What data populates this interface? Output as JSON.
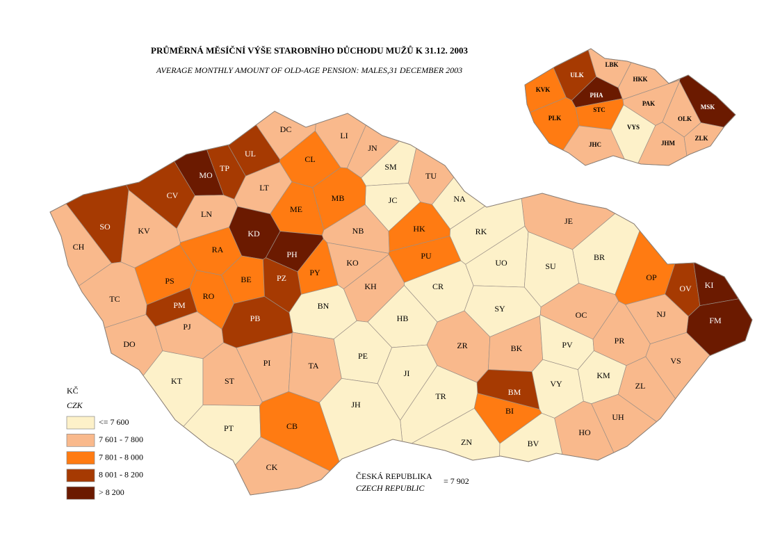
{
  "title": "PRŮMĚRNÁ MĚSÍČNÍ VÝŠE STAROBNÍHO DŮCHODU MUŽŮ K 31.12. 2003",
  "subtitle": "AVERAGE MONTHLY AMOUNT OF OLD-AGE PENSION: MALES,31 DECEMBER 2003",
  "legend": {
    "title": "KČ",
    "subtitle": "CZK",
    "items": [
      {
        "label": "<= 7 600",
        "color": "#fdf1c9"
      },
      {
        "label": "7 601 - 7 800",
        "color": "#f9b98c"
      },
      {
        "label": "7 801 - 8 000",
        "color": "#ff7b12"
      },
      {
        "label": "8 001 - 8 200",
        "color": "#a63a02"
      },
      {
        "label": "> 8 200",
        "color": "#6b1a00"
      }
    ]
  },
  "national": {
    "label": "ČESKÁ REPUBLIKA",
    "label_en": "CZECH REPUBLIC",
    "value": "= 7 902"
  },
  "districts": [
    {
      "code": "DC",
      "color": "#f9b98c"
    },
    {
      "code": "LI",
      "color": "#f9b98c"
    },
    {
      "code": "JN",
      "color": "#f9b98c"
    },
    {
      "code": "CL",
      "color": "#ff7b12"
    },
    {
      "code": "UL",
      "color": "#a63a02"
    },
    {
      "code": "TP",
      "color": "#a63a02"
    },
    {
      "code": "MO",
      "color": "#6b1a00"
    },
    {
      "code": "SM",
      "color": "#fdf1c9"
    },
    {
      "code": "TU",
      "color": "#f9b98c"
    },
    {
      "code": "LT",
      "color": "#f9b98c"
    },
    {
      "code": "CV",
      "color": "#a63a02"
    },
    {
      "code": "JC",
      "color": "#fdf1c9"
    },
    {
      "code": "NA",
      "color": "#fdf1c9"
    },
    {
      "code": "MB",
      "color": "#ff7b12"
    },
    {
      "code": "ME",
      "color": "#ff7b12"
    },
    {
      "code": "LN",
      "color": "#f9b98c"
    },
    {
      "code": "SO",
      "color": "#a63a02"
    },
    {
      "code": "KV",
      "color": "#f9b98c"
    },
    {
      "code": "JE",
      "color": "#f9b98c"
    },
    {
      "code": "KD",
      "color": "#6b1a00"
    },
    {
      "code": "NB",
      "color": "#f9b98c"
    },
    {
      "code": "HK",
      "color": "#ff7b12"
    },
    {
      "code": "RK",
      "color": "#fdf1c9"
    },
    {
      "code": "CH",
      "color": "#f9b98c"
    },
    {
      "code": "RA",
      "color": "#ff7b12"
    },
    {
      "code": "PH",
      "color": "#6b1a00"
    },
    {
      "code": "BR",
      "color": "#fdf1c9"
    },
    {
      "code": "KO",
      "color": "#f9b98c"
    },
    {
      "code": "UO",
      "color": "#fdf1c9"
    },
    {
      "code": "SU",
      "color": "#fdf1c9"
    },
    {
      "code": "PU",
      "color": "#ff7b12"
    },
    {
      "code": "PY",
      "color": "#ff7b12"
    },
    {
      "code": "PS",
      "color": "#ff7b12"
    },
    {
      "code": "BE",
      "color": "#ff7b12"
    },
    {
      "code": "PZ",
      "color": "#a63a02"
    },
    {
      "code": "OP",
      "color": "#ff7b12"
    },
    {
      "code": "OV",
      "color": "#a63a02"
    },
    {
      "code": "KI",
      "color": "#6b1a00"
    },
    {
      "code": "FM",
      "color": "#6b1a00"
    },
    {
      "code": "KH",
      "color": "#f9b98c"
    },
    {
      "code": "CR",
      "color": "#fdf1c9"
    },
    {
      "code": "TC",
      "color": "#f9b98c"
    },
    {
      "code": "RO",
      "color": "#ff7b12"
    },
    {
      "code": "PM",
      "color": "#a63a02"
    },
    {
      "code": "BN",
      "color": "#fdf1c9"
    },
    {
      "code": "SY",
      "color": "#fdf1c9"
    },
    {
      "code": "HB",
      "color": "#fdf1c9"
    },
    {
      "code": "OC",
      "color": "#f9b98c"
    },
    {
      "code": "NJ",
      "color": "#f9b98c"
    },
    {
      "code": "PB",
      "color": "#a63a02"
    },
    {
      "code": "PJ",
      "color": "#f9b98c"
    },
    {
      "code": "DO",
      "color": "#f9b98c"
    },
    {
      "code": "ZR",
      "color": "#f9b98c"
    },
    {
      "code": "BK",
      "color": "#f9b98c"
    },
    {
      "code": "PV",
      "color": "#fdf1c9"
    },
    {
      "code": "PR",
      "color": "#f9b98c"
    },
    {
      "code": "PE",
      "color": "#fdf1c9"
    },
    {
      "code": "PI",
      "color": "#f9b98c"
    },
    {
      "code": "TA",
      "color": "#f9b98c"
    },
    {
      "code": "VS",
      "color": "#f9b98c"
    },
    {
      "code": "JI",
      "color": "#fdf1c9"
    },
    {
      "code": "KM",
      "color": "#fdf1c9"
    },
    {
      "code": "KT",
      "color": "#fdf1c9"
    },
    {
      "code": "ST",
      "color": "#f9b98c"
    },
    {
      "code": "VY",
      "color": "#fdf1c9"
    },
    {
      "code": "ZL",
      "color": "#f9b98c"
    },
    {
      "code": "BM",
      "color": "#a63a02"
    },
    {
      "code": "TR",
      "color": "#fdf1c9"
    },
    {
      "code": "JH",
      "color": "#fdf1c9"
    },
    {
      "code": "BI",
      "color": "#ff7b12"
    },
    {
      "code": "UH",
      "color": "#f9b98c"
    },
    {
      "code": "PT",
      "color": "#fdf1c9"
    },
    {
      "code": "CB",
      "color": "#ff7b12"
    },
    {
      "code": "HO",
      "color": "#f9b98c"
    },
    {
      "code": "ZN",
      "color": "#fdf1c9"
    },
    {
      "code": "BV",
      "color": "#fdf1c9"
    },
    {
      "code": "CK",
      "color": "#f9b98c"
    }
  ],
  "regions": [
    {
      "code": "LBK",
      "color": "#f9b98c"
    },
    {
      "code": "ULK",
      "color": "#a63a02"
    },
    {
      "code": "HKK",
      "color": "#f9b98c"
    },
    {
      "code": "KVK",
      "color": "#ff7b12"
    },
    {
      "code": "PHA",
      "color": "#6b1a00"
    },
    {
      "code": "STC",
      "color": "#ff7b12"
    },
    {
      "code": "PAK",
      "color": "#f9b98c"
    },
    {
      "code": "MSK",
      "color": "#6b1a00"
    },
    {
      "code": "PLK",
      "color": "#ff7b12"
    },
    {
      "code": "VYS",
      "color": "#fdf1c9"
    },
    {
      "code": "OLK",
      "color": "#f9b98c"
    },
    {
      "code": "JHC",
      "color": "#f9b98c"
    },
    {
      "code": "JHM",
      "color": "#f9b98c"
    },
    {
      "code": "ZLK",
      "color": "#f9b98c"
    }
  ]
}
